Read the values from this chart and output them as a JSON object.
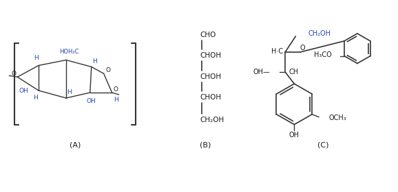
{
  "bg_color": "#ffffff",
  "text_color": "#1a1a1a",
  "blue_color": "#2244aa",
  "line_color": "#333333",
  "label_A": "(A)",
  "label_B": "(B)",
  "label_C": "(C)",
  "figsize": [
    5.78,
    2.8
  ],
  "dpi": 100
}
